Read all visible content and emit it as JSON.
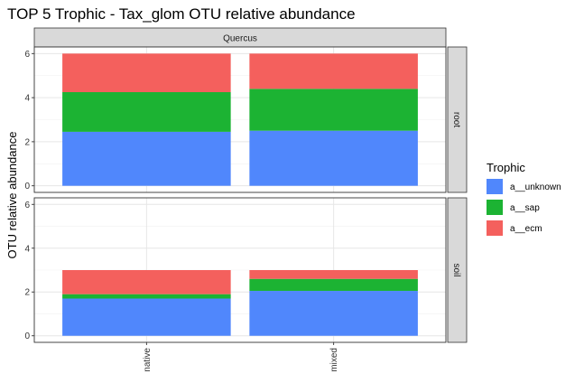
{
  "chart_data": {
    "type": "bar",
    "stacked": true,
    "title": "TOP 5 Trophic - Tax_glom OTU relative abundance",
    "xlabel": "",
    "ylabel": "OTU relative abundance",
    "facet_column": "Quercus",
    "categories": [
      "native",
      "mixed"
    ],
    "ylim": [
      0,
      6
    ],
    "yticks": [
      0,
      2,
      4,
      6
    ],
    "legend": {
      "title": "Trophic",
      "position": "right",
      "entries": [
        "a__unknown",
        "a__sap",
        "a__ecm"
      ]
    },
    "colors": {
      "a__unknown": "#5087fc",
      "a__sap": "#1cb333",
      "a__ecm": "#f4605d"
    },
    "panels": [
      {
        "row_label": "root",
        "series": [
          {
            "name": "a__unknown",
            "values": [
              2.45,
              2.5
            ]
          },
          {
            "name": "a__sap",
            "values": [
              1.8,
              1.9
            ]
          },
          {
            "name": "a__ecm",
            "values": [
              1.75,
              1.6
            ]
          }
        ]
      },
      {
        "row_label": "soil",
        "series": [
          {
            "name": "a__unknown",
            "values": [
              1.7,
              2.05
            ]
          },
          {
            "name": "a__sap",
            "values": [
              0.2,
              0.55
            ]
          },
          {
            "name": "a__ecm",
            "values": [
              1.1,
              0.4
            ]
          }
        ]
      }
    ]
  }
}
